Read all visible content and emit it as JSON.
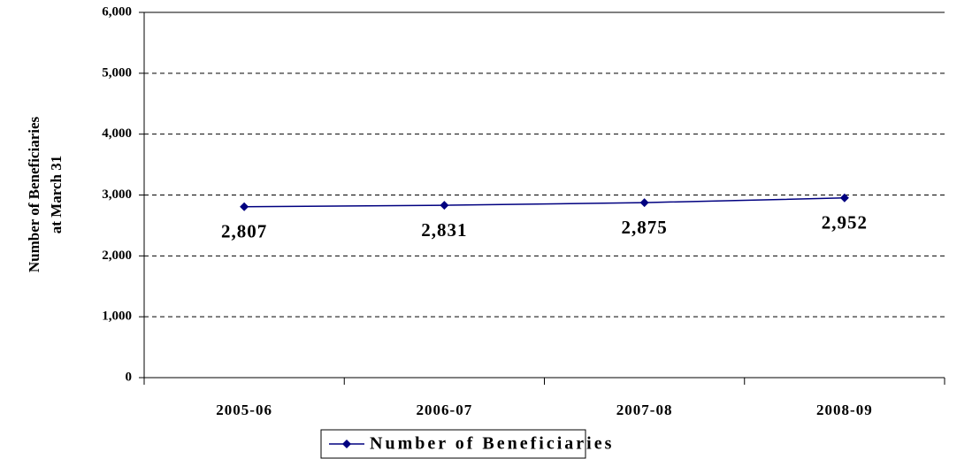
{
  "chart_data": {
    "type": "line",
    "y_label_lines": [
      "Number of Beneficiaries",
      "at March 31"
    ],
    "categories": [
      "2005-06",
      "2006-07",
      "2007-08",
      "2008-09"
    ],
    "series": [
      {
        "name": "Number of Beneficiaries",
        "color": "#000080",
        "values": [
          2807,
          2831,
          2875,
          2952
        ],
        "value_labels": [
          "2,807",
          "2,831",
          "2,875",
          "2,952"
        ]
      }
    ],
    "ylim": [
      0,
      6000
    ],
    "yticks": [
      0,
      {
        "value": 1000,
        "label": "1,000"
      },
      {
        "value": 2000,
        "label": "2,000"
      },
      {
        "value": 3000,
        "label": "3,000"
      },
      {
        "value": 4000,
        "label": "4,000"
      },
      {
        "value": 5000,
        "label": "5,000"
      },
      {
        "value": 6000,
        "label": "6,000"
      }
    ],
    "grid": true,
    "legend": "bottom"
  }
}
